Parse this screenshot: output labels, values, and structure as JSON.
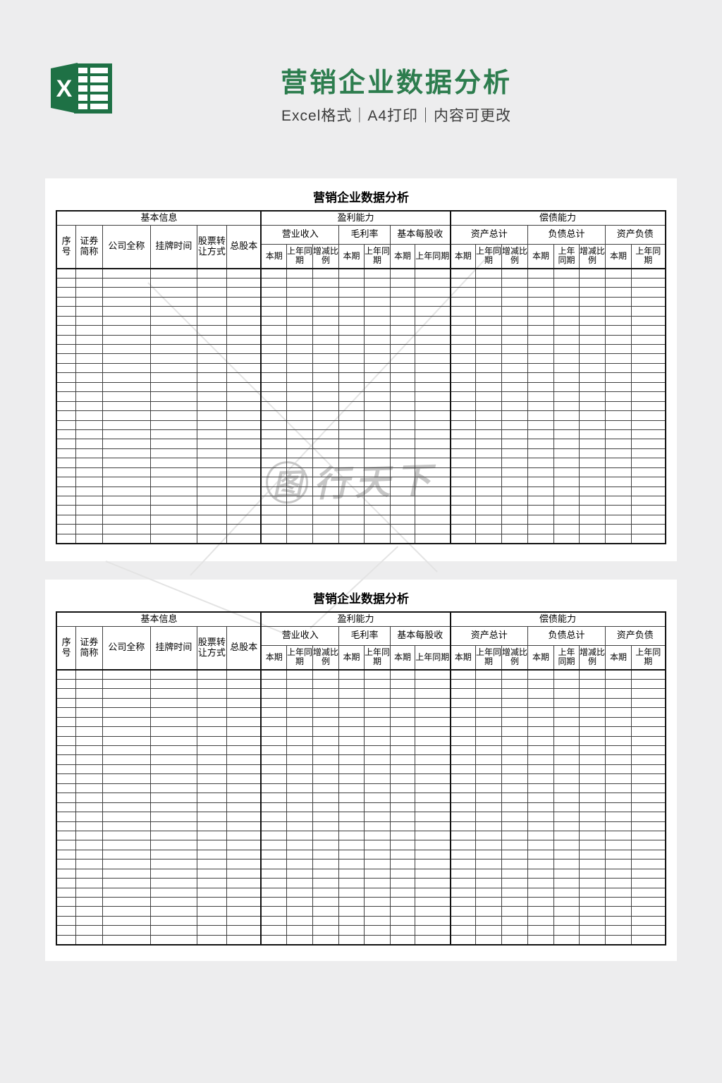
{
  "colors": {
    "page_background": "#ededee",
    "panel_background": "#ffffff",
    "title_green": "#2d7d4e",
    "logo_green_dark": "#1e7145",
    "subtitle_gray": "#3c3c3c",
    "grid_line": "#3f3f3f",
    "grid_line_heavy": "#111111",
    "watermark_gray": "#c7c7c7"
  },
  "header": {
    "title": "营销企业数据分析",
    "subtitle": "Excel格式｜A4打印｜内容可更改",
    "logo_letter": "X"
  },
  "watermark": {
    "text_first": "图",
    "text_rest": "行天下"
  },
  "sheet": {
    "title": "营销企业数据分析",
    "header": {
      "groups": [
        {
          "label": "基本信息",
          "columns": [
            "序号",
            "证券简称",
            "公司全称",
            "挂牌时间",
            "股票转让方式",
            "总股本"
          ]
        },
        {
          "label": "盈利能力",
          "subgroups": [
            {
              "label": "营业收入",
              "columns": [
                "本期",
                "上年同期",
                "增减比例"
              ]
            },
            {
              "label": "毛利率",
              "columns": [
                "本期",
                "上年同期"
              ]
            },
            {
              "label": "基本每股收",
              "columns": [
                "本期",
                "上年同期"
              ]
            }
          ]
        },
        {
          "label": "偿债能力",
          "subgroups": [
            {
              "label": "资产总计",
              "columns": [
                "本期",
                "上年同期",
                "增减比例"
              ]
            },
            {
              "label": "负债总计",
              "columns": [
                "本期",
                "上年同期",
                "增减比例"
              ]
            },
            {
              "label": "资产负债",
              "columns": [
                "本期",
                "上年同期"
              ]
            }
          ]
        }
      ]
    },
    "empty_row_count": 29,
    "total_columns": 21
  },
  "panels": [
    {
      "sheet_title": "营销企业数据分析"
    },
    {
      "sheet_title": "营销企业数据分析"
    }
  ]
}
